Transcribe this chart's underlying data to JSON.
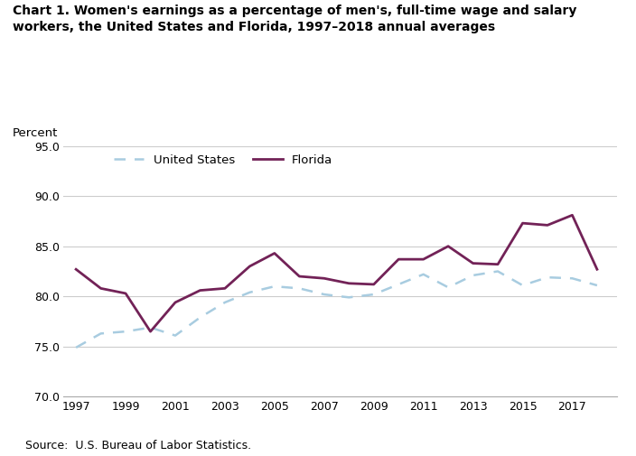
{
  "years": [
    1997,
    1998,
    1999,
    2000,
    2001,
    2002,
    2003,
    2004,
    2005,
    2006,
    2007,
    2008,
    2009,
    2010,
    2011,
    2012,
    2013,
    2014,
    2015,
    2016,
    2017,
    2018
  ],
  "us_values": [
    74.9,
    76.3,
    76.5,
    76.9,
    76.1,
    77.9,
    79.4,
    80.4,
    81.0,
    80.8,
    80.2,
    79.9,
    80.2,
    81.2,
    82.2,
    80.9,
    82.1,
    82.5,
    81.1,
    81.9,
    81.8,
    81.1
  ],
  "fl_values": [
    82.7,
    80.8,
    80.3,
    76.5,
    79.4,
    80.6,
    80.8,
    83.0,
    84.3,
    82.0,
    81.8,
    81.3,
    81.2,
    83.7,
    83.7,
    85.0,
    83.3,
    83.2,
    87.3,
    87.1,
    88.1,
    82.7
  ],
  "us_color": "#a8cce0",
  "fl_color": "#722257",
  "title": "Chart 1. Women's earnings as a percentage of men's, full-time wage and salary\nworkers, the United States and Florida, 1997–2018 annual averages",
  "percent_label": "Percent",
  "ylim": [
    70.0,
    95.0
  ],
  "yticks": [
    70.0,
    75.0,
    80.0,
    85.0,
    90.0,
    95.0
  ],
  "xtick_years": [
    1997,
    1999,
    2001,
    2003,
    2005,
    2007,
    2009,
    2011,
    2013,
    2015,
    2017
  ],
  "source_text": "Source:  U.S. Bureau of Labor Statistics.",
  "legend_us": "United States",
  "legend_fl": "Florida",
  "bg_color": "#ffffff",
  "grid_color": "#cccccc",
  "title_fontsize": 10.0,
  "tick_fontsize": 9.0,
  "legend_fontsize": 9.5,
  "source_fontsize": 9.0,
  "percent_fontsize": 9.5
}
